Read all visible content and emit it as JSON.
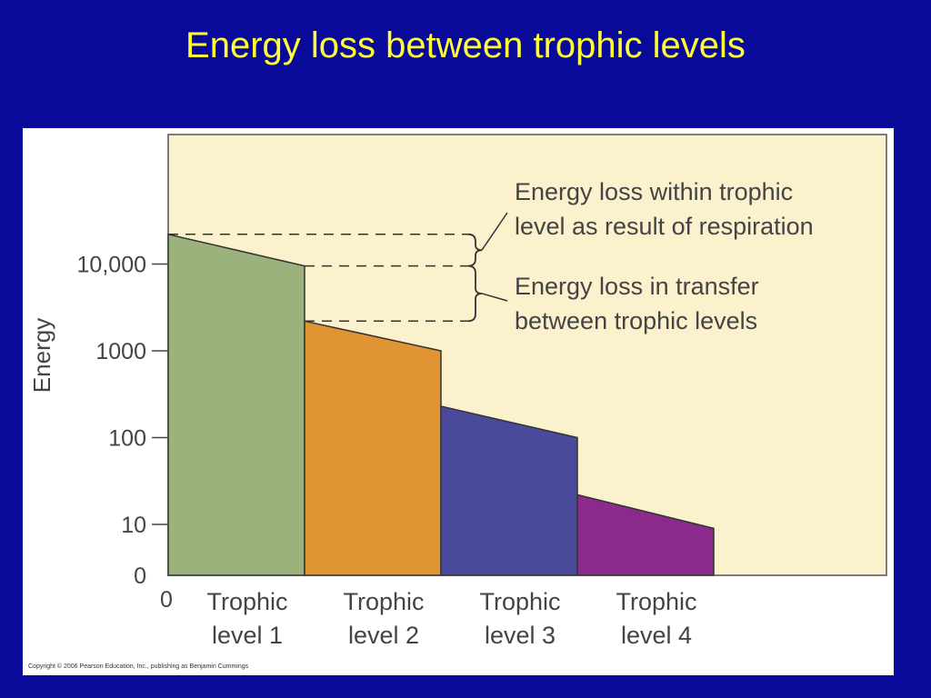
{
  "slide": {
    "title": "Energy loss between trophic levels"
  },
  "chart_data": {
    "type": "area",
    "ylabel": "Energy",
    "y_scale": "log",
    "y_ticks": [
      {
        "label": "10,000",
        "value": 10000
      },
      {
        "label": "1000",
        "value": 1000
      },
      {
        "label": "100",
        "value": 100
      },
      {
        "label": "10",
        "value": 10
      },
      {
        "label": "0",
        "value": 0
      }
    ],
    "x_origin_label": "0",
    "categories": [
      {
        "line1": "Trophic",
        "line2": "level 1"
      },
      {
        "line1": "Trophic",
        "line2": "level 2"
      },
      {
        "line1": "Trophic",
        "line2": "level 3"
      },
      {
        "line1": "Trophic",
        "line2": "level 4"
      }
    ],
    "levels": [
      {
        "start": 22000,
        "end": 9500,
        "color": "#9cb27c"
      },
      {
        "start": 2200,
        "end": 1000,
        "color": "#e09433"
      },
      {
        "start": 230,
        "end": 100,
        "color": "#4a4a9a"
      },
      {
        "start": 22,
        "end": 9,
        "color": "#8a2a8c"
      }
    ],
    "annotations": [
      {
        "line1": "Energy loss within trophic",
        "line2": "level as result of respiration"
      },
      {
        "line1": "Energy loss in transfer",
        "line2": "between trophic levels"
      }
    ],
    "grid": false
  },
  "footer": {
    "copyright": "Copyright © 2006 Pearson Education, Inc., publishing as Benjamin Cummings"
  },
  "colors": {
    "background": "#0a0a9a",
    "title": "#ffff33",
    "plot_background": "#fcf1cd"
  }
}
